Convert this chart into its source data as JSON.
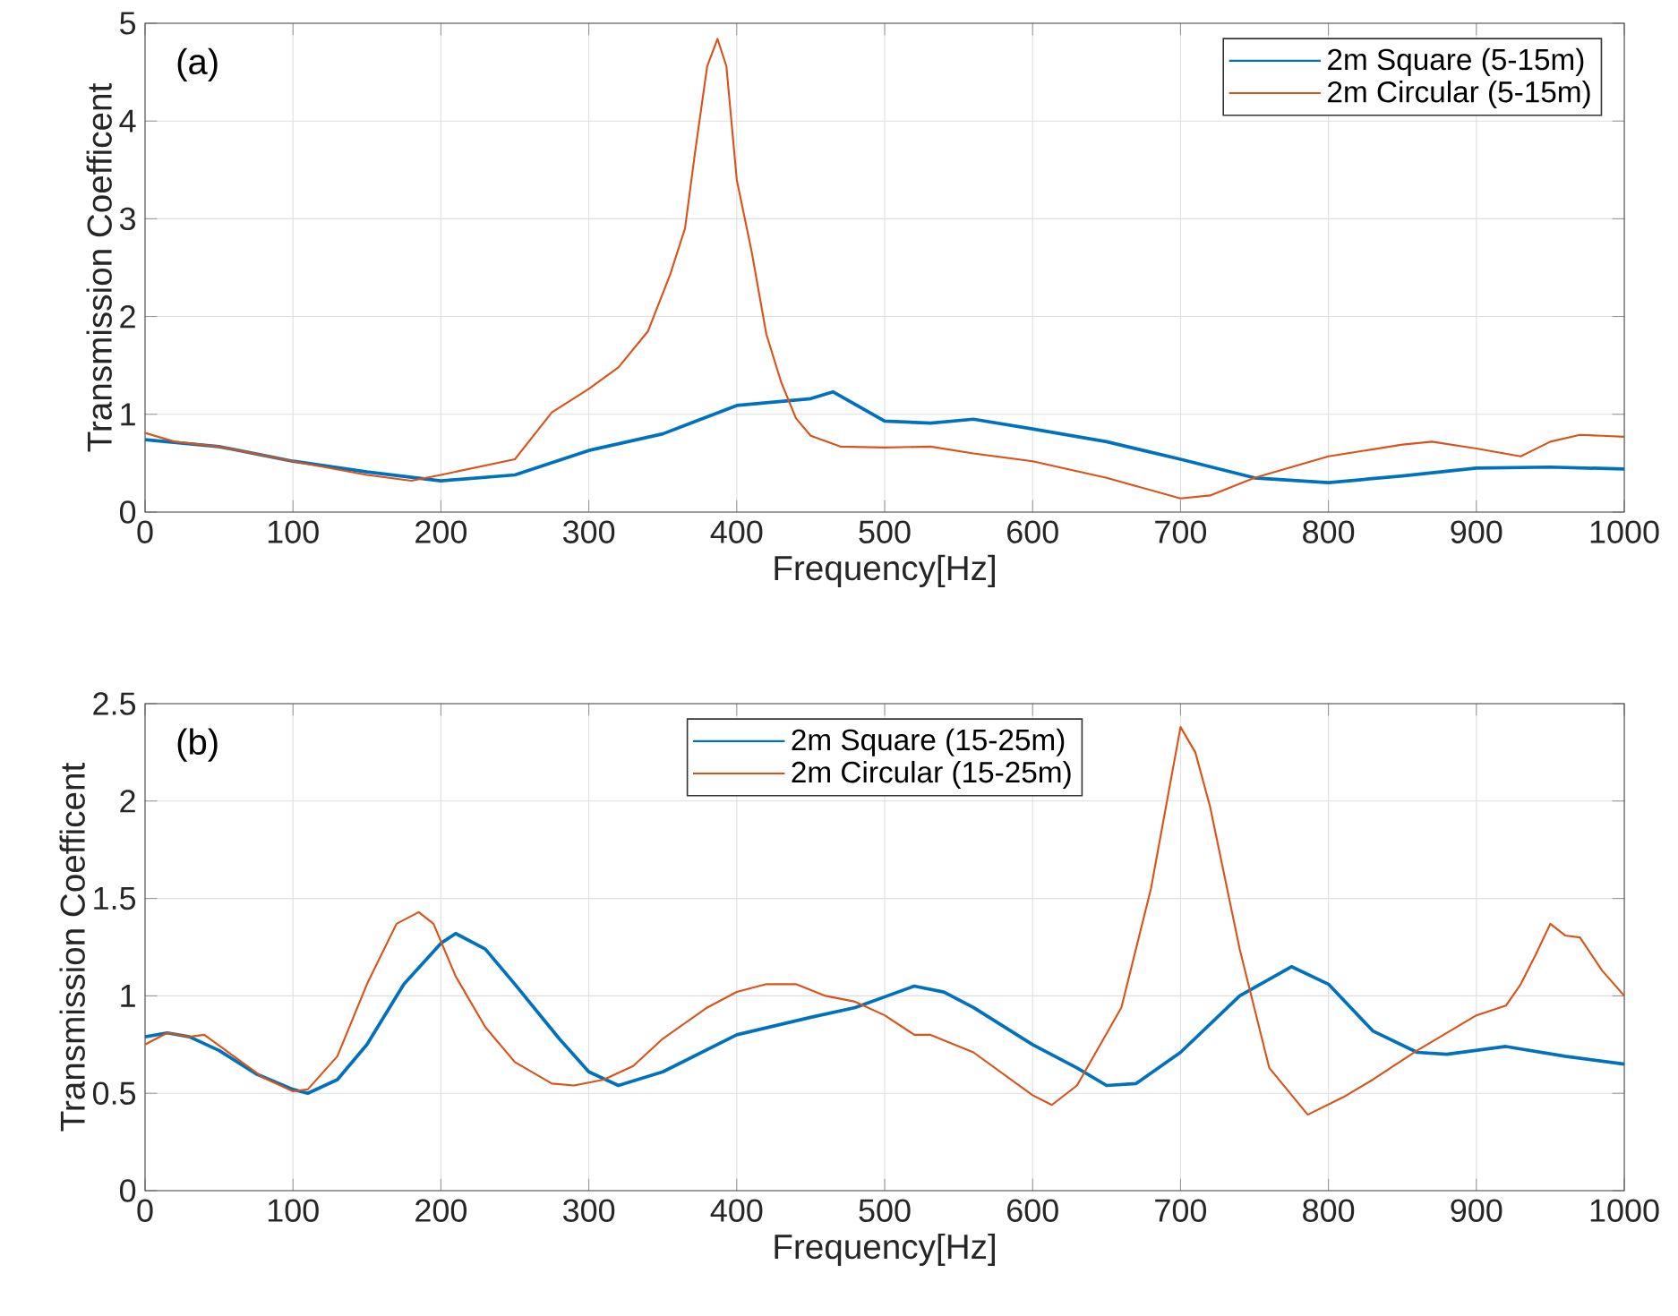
{
  "chart_data": [
    {
      "type": "line",
      "xlabel": "Frequency[Hz]",
      "ylabel": "Transmission Coefficent",
      "annotations": [
        "(a)"
      ],
      "xlim": [
        0,
        1000
      ],
      "ylim": [
        0,
        5
      ],
      "xticks": [
        0,
        100,
        200,
        300,
        400,
        500,
        600,
        700,
        800,
        900,
        1000
      ],
      "yticks": [
        0,
        1,
        2,
        3,
        4,
        5
      ],
      "grid": true,
      "legend": "top right",
      "series": [
        {
          "name": "2m Square (5-15m)",
          "color": "#0072bd",
          "x": [
            0,
            50,
            100,
            150,
            200,
            250,
            300,
            350,
            400,
            450,
            465,
            500,
            531,
            560,
            600,
            650,
            700,
            750,
            800,
            850,
            900,
            950,
            1000
          ],
          "values": [
            0.74,
            0.67,
            0.52,
            0.41,
            0.32,
            0.38,
            0.63,
            0.8,
            1.09,
            1.16,
            1.23,
            0.93,
            0.91,
            0.95,
            0.85,
            0.72,
            0.54,
            0.35,
            0.3,
            0.37,
            0.45,
            0.46,
            0.44
          ]
        },
        {
          "name": "2m Circular (5-15m)",
          "color": "#d95319",
          "x": [
            0,
            20,
            50,
            100,
            150,
            180,
            200,
            250,
            275,
            300,
            320,
            340,
            355,
            365,
            372,
            380,
            387,
            393,
            400,
            410,
            420,
            430,
            440,
            450,
            470,
            500,
            531,
            560,
            600,
            650,
            700,
            720,
            750,
            800,
            850,
            870,
            900,
            930,
            950,
            970,
            985,
            1000
          ],
          "values": [
            0.81,
            0.72,
            0.67,
            0.52,
            0.38,
            0.32,
            0.38,
            0.54,
            1.02,
            1.26,
            1.48,
            1.85,
            2.43,
            2.9,
            3.7,
            4.56,
            4.84,
            4.56,
            3.4,
            2.67,
            1.82,
            1.33,
            0.96,
            0.78,
            0.67,
            0.66,
            0.67,
            0.6,
            0.52,
            0.35,
            0.14,
            0.17,
            0.35,
            0.57,
            0.69,
            0.72,
            0.65,
            0.57,
            0.72,
            0.79,
            0.78,
            0.77
          ]
        }
      ]
    },
    {
      "type": "line",
      "xlabel": "Frequency[Hz]",
      "ylabel": "Transmission Coefficent",
      "annotations": [
        "(b)"
      ],
      "xlim": [
        0,
        1000
      ],
      "ylim": [
        0,
        2.5
      ],
      "xticks": [
        0,
        100,
        200,
        300,
        400,
        500,
        600,
        700,
        800,
        900,
        1000
      ],
      "yticks": [
        0,
        0.5,
        1,
        1.5,
        2,
        2.5
      ],
      "grid": true,
      "legend": "top",
      "series": [
        {
          "name": "2m Square (15-25m)",
          "color": "#0072bd",
          "x": [
            0,
            15,
            30,
            50,
            75,
            100,
            110,
            130,
            150,
            175,
            200,
            210,
            230,
            250,
            280,
            300,
            320,
            350,
            400,
            450,
            480,
            520,
            540,
            560,
            600,
            630,
            650,
            670,
            700,
            740,
            775,
            800,
            830,
            860,
            880,
            920,
            960,
            1000
          ],
          "values": [
            0.79,
            0.81,
            0.79,
            0.72,
            0.6,
            0.52,
            0.5,
            0.57,
            0.75,
            1.06,
            1.27,
            1.32,
            1.24,
            1.06,
            0.78,
            0.61,
            0.54,
            0.61,
            0.8,
            0.89,
            0.94,
            1.05,
            1.02,
            0.94,
            0.75,
            0.63,
            0.54,
            0.55,
            0.71,
            1.0,
            1.15,
            1.06,
            0.82,
            0.71,
            0.7,
            0.74,
            0.69,
            0.65
          ]
        },
        {
          "name": "2m Circular (15-25m)",
          "color": "#d95319",
          "x": [
            0,
            15,
            30,
            40,
            60,
            80,
            100,
            110,
            130,
            150,
            170,
            185,
            195,
            210,
            230,
            250,
            275,
            290,
            310,
            330,
            350,
            380,
            400,
            420,
            440,
            460,
            480,
            500,
            520,
            531,
            560,
            600,
            613,
            630,
            660,
            680,
            700,
            710,
            720,
            740,
            760,
            786,
            810,
            830,
            860,
            880,
            900,
            920,
            930,
            940,
            950,
            960,
            970,
            985,
            1000
          ],
          "values": [
            0.75,
            0.81,
            0.79,
            0.8,
            0.69,
            0.58,
            0.51,
            0.52,
            0.69,
            1.06,
            1.37,
            1.43,
            1.37,
            1.1,
            0.84,
            0.66,
            0.55,
            0.54,
            0.57,
            0.64,
            0.78,
            0.94,
            1.02,
            1.06,
            1.06,
            1.0,
            0.97,
            0.9,
            0.8,
            0.8,
            0.71,
            0.49,
            0.44,
            0.54,
            0.94,
            1.55,
            2.38,
            2.25,
            1.97,
            1.24,
            0.63,
            0.39,
            0.48,
            0.57,
            0.72,
            0.81,
            0.9,
            0.95,
            1.06,
            1.21,
            1.37,
            1.31,
            1.3,
            1.13,
            1.0
          ]
        }
      ]
    }
  ]
}
